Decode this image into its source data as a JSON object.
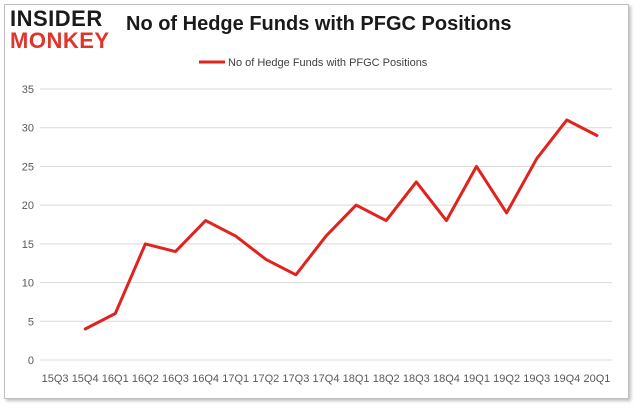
{
  "logo": {
    "top": "INSIDER",
    "bottom": "MONKEY"
  },
  "colors": {
    "line": "#e0231c",
    "grid": "#d9d9d9",
    "logo_red": "#e0352b"
  },
  "chart_data": {
    "type": "line",
    "title": "No of Hedge Funds with PFGC Positions",
    "xlabel": "",
    "ylabel": "",
    "ylim": [
      0,
      35
    ],
    "yticks": [
      0,
      5,
      10,
      15,
      20,
      25,
      30,
      35
    ],
    "grid": true,
    "legend_position": "top-center",
    "categories": [
      "15Q3",
      "15Q4",
      "16Q1",
      "16Q2",
      "16Q3",
      "16Q4",
      "17Q1",
      "17Q2",
      "17Q3",
      "17Q4",
      "18Q1",
      "18Q2",
      "18Q3",
      "18Q4",
      "19Q1",
      "19Q2",
      "19Q3",
      "19Q4",
      "20Q1"
    ],
    "series": [
      {
        "name": "No of Hedge Funds with PFGC Positions",
        "values": [
          null,
          4,
          6,
          15,
          14,
          18,
          16,
          13,
          11,
          16,
          20,
          18,
          23,
          18,
          25,
          19,
          26,
          31,
          29
        ]
      }
    ]
  }
}
